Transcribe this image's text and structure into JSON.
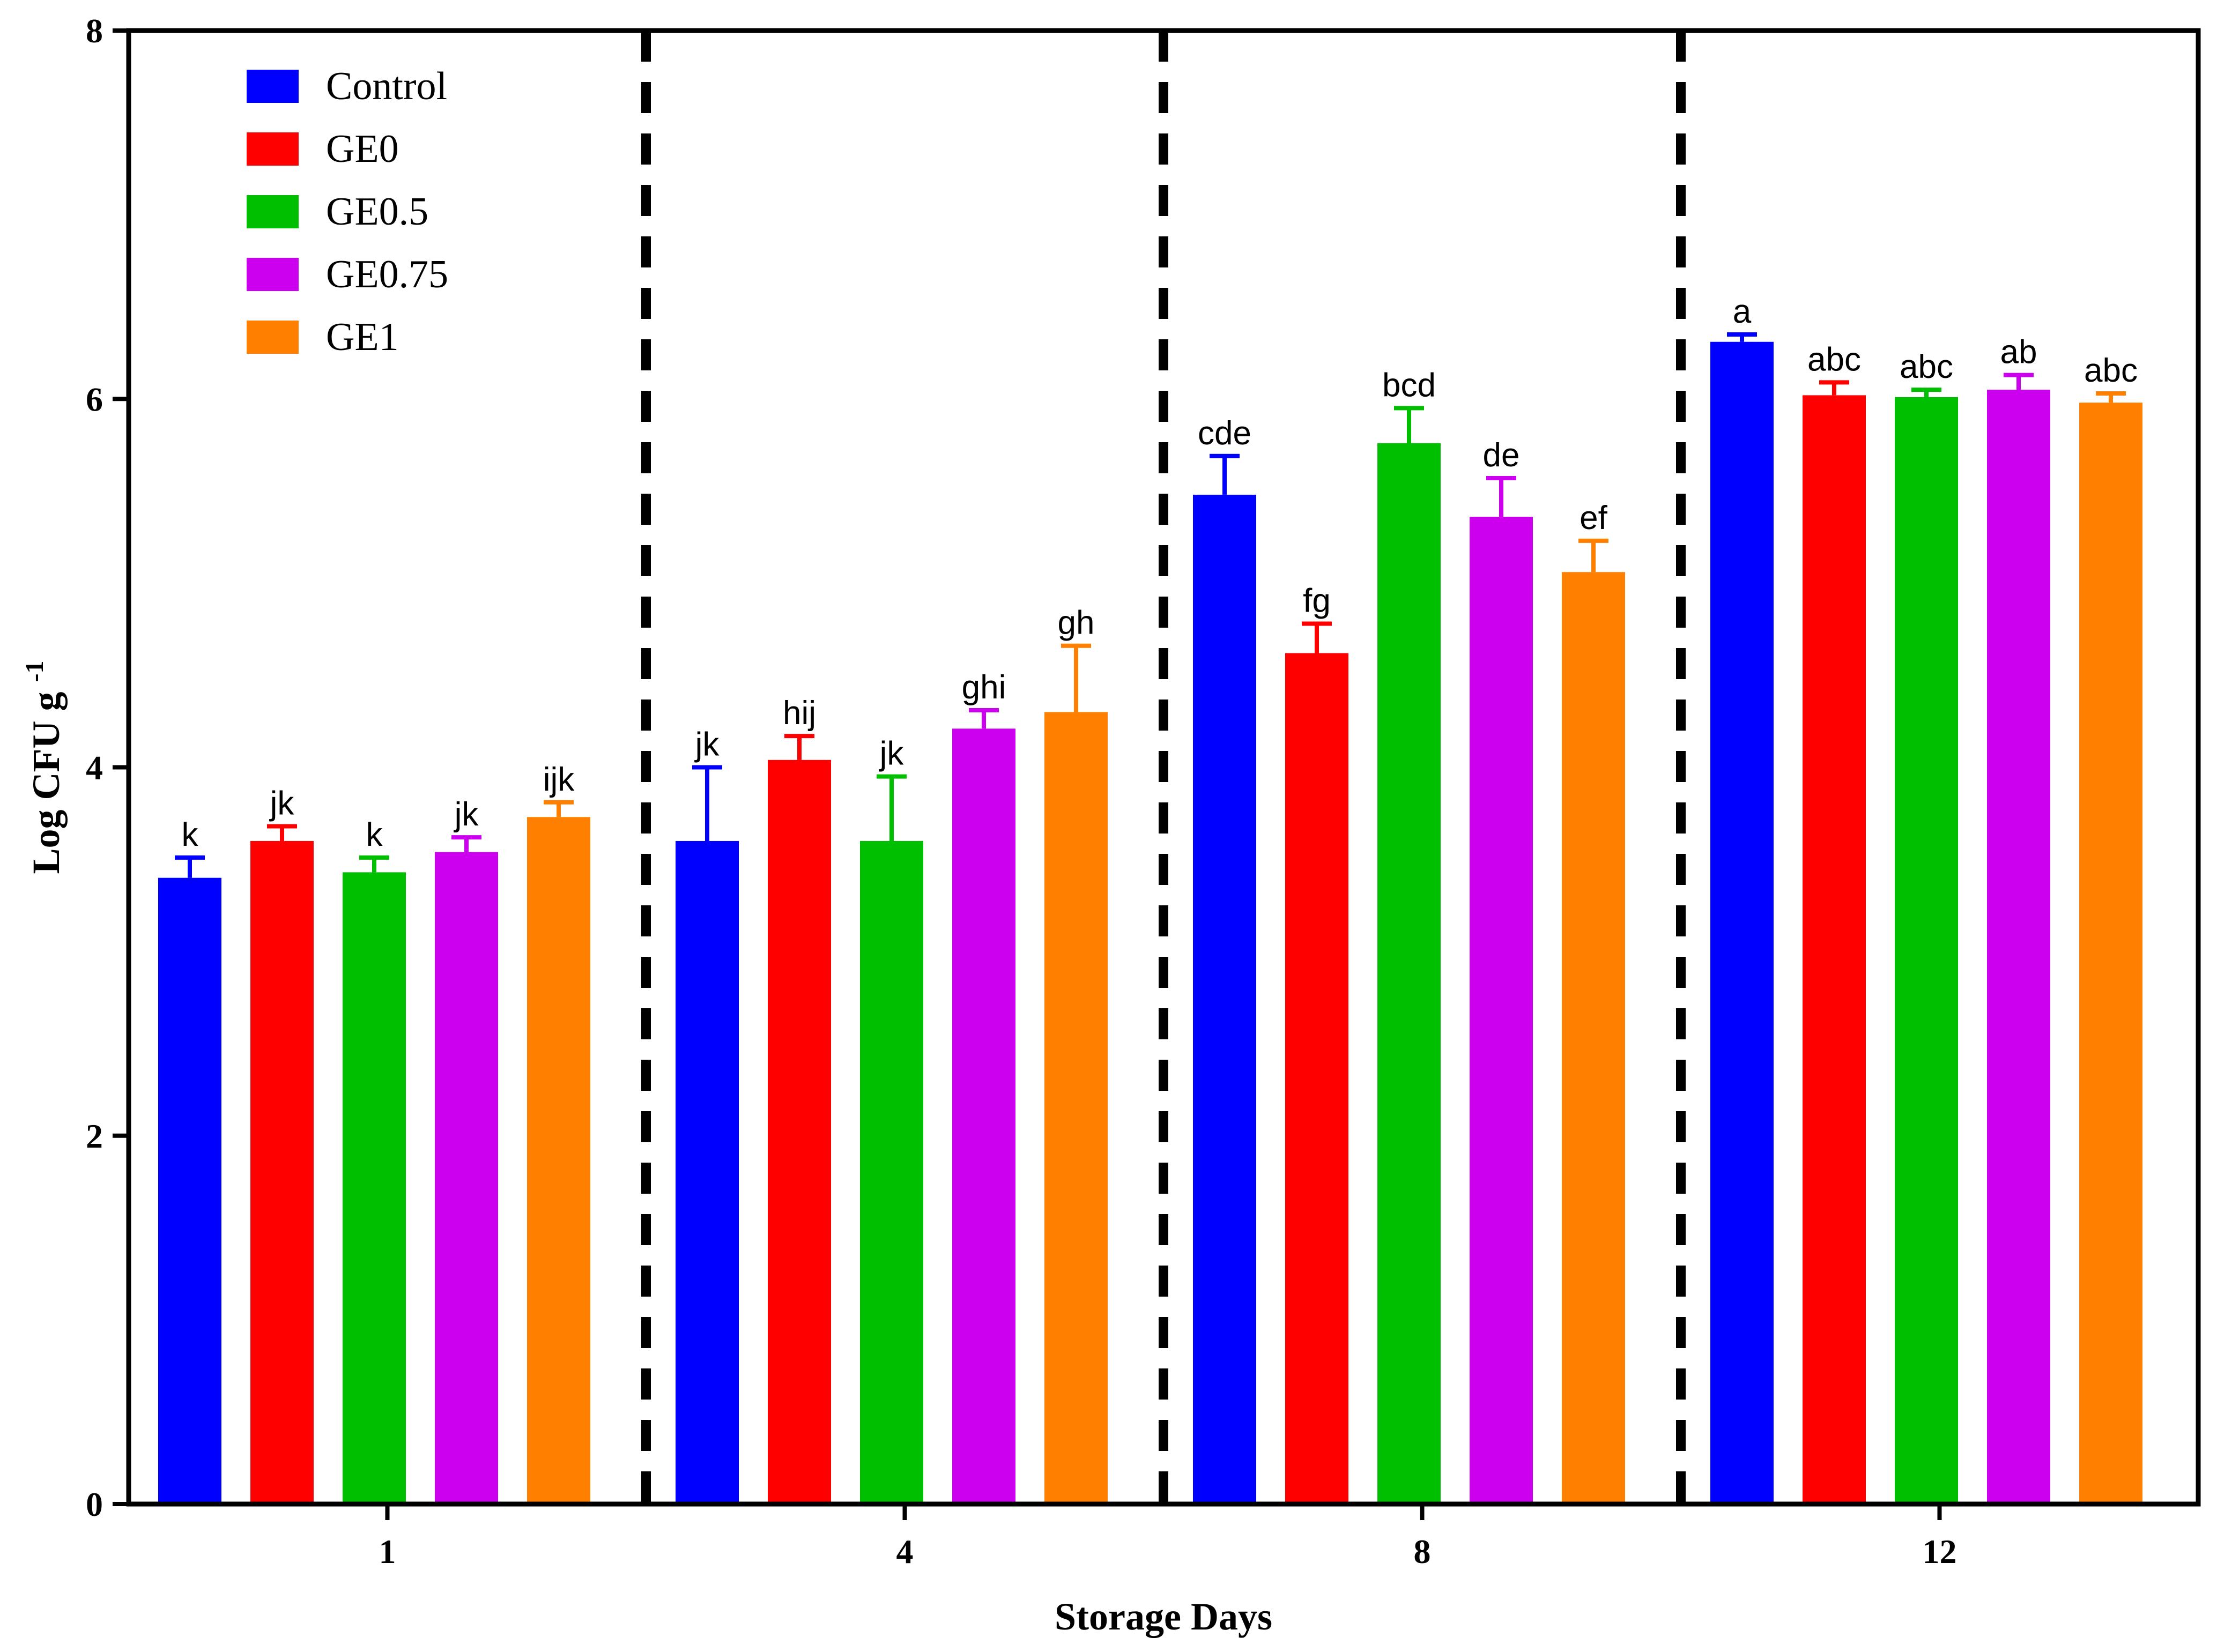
{
  "chart_data": {
    "type": "bar",
    "title": "",
    "xlabel": "Storage Days",
    "ylabel": "Log CFU g",
    "ylabel_superscript": "-1",
    "ylim": [
      0,
      8
    ],
    "yticks": [
      0,
      2,
      4,
      6,
      8
    ],
    "categories": [
      "1",
      "4",
      "8",
      "12"
    ],
    "legend_position": "top-left",
    "grid": false,
    "group_separators": "dashed vertical lines between day groups",
    "series": [
      {
        "name": "Control",
        "color": "#0000ff",
        "values": [
          3.4,
          3.6,
          5.48,
          6.31
        ],
        "errors": [
          0.11,
          0.4,
          0.21,
          0.04
        ],
        "labels": [
          "k",
          "jk",
          "cde",
          "a"
        ]
      },
      {
        "name": "GE0",
        "color": "#ff0000",
        "values": [
          3.6,
          4.04,
          4.62,
          6.02
        ],
        "errors": [
          0.08,
          0.13,
          0.16,
          0.07
        ],
        "labels": [
          "jk",
          "hij",
          "fg",
          "abc"
        ]
      },
      {
        "name": "GE0.5",
        "color": "#00bf00",
        "values": [
          3.43,
          3.6,
          5.76,
          6.01
        ],
        "errors": [
          0.08,
          0.35,
          0.19,
          0.04
        ],
        "labels": [
          "k",
          "jk",
          "bcd",
          "abc"
        ]
      },
      {
        "name": "GE0.75",
        "color": "#cc00ee",
        "values": [
          3.54,
          4.21,
          5.36,
          6.05
        ],
        "errors": [
          0.08,
          0.1,
          0.21,
          0.08
        ],
        "labels": [
          "jk",
          "ghi",
          "de",
          "ab"
        ]
      },
      {
        "name": "GE1",
        "color": "#ff8000",
        "values": [
          3.73,
          4.3,
          5.06,
          5.98
        ],
        "errors": [
          0.08,
          0.36,
          0.17,
          0.05
        ],
        "labels": [
          "ijk",
          "gh",
          "ef",
          "abc"
        ]
      }
    ]
  }
}
